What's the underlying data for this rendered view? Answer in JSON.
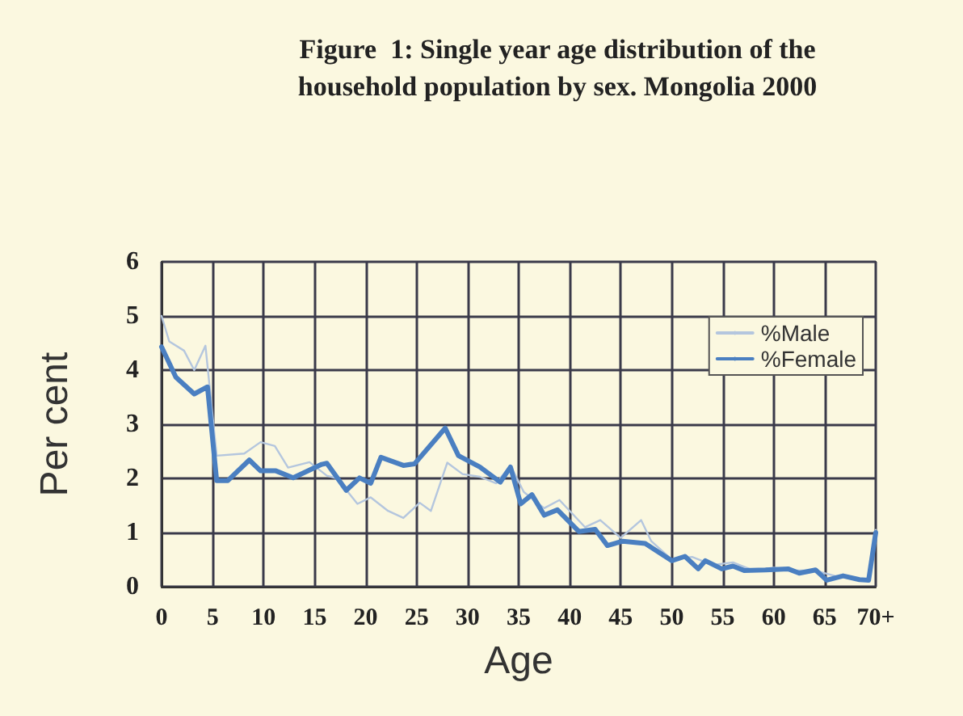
{
  "chart_data": {
    "type": "line",
    "title": "Figure  1: Single year age distribution of the\nhousehold population by sex. Mongolia 2000",
    "xlabel": "Age",
    "ylabel": "Per cent",
    "xlim": [
      0,
      70
    ],
    "xticks": [
      0,
      5,
      10,
      15,
      20,
      25,
      30,
      35,
      40,
      45,
      50,
      55,
      60,
      65,
      {
        "value": 70,
        "label": "70+"
      }
    ],
    "ylim": [
      0,
      6
    ],
    "yticks": [
      0,
      1,
      2,
      3,
      4,
      5,
      6
    ],
    "grid": true,
    "legend": "right",
    "marker": "none",
    "line_style": "solid",
    "series": [
      {
        "name": "%Male",
        "color": "#b4c6de",
        "x": [
          0,
          0.75,
          2.2,
          3.2,
          4.3,
          5.4,
          8.1,
          9.7,
          11.1,
          12.4,
          14.5,
          16.2,
          17.2,
          19.2,
          20.5,
          22.2,
          23.7,
          25.3,
          26.4,
          28,
          29.5,
          31.2,
          32.8,
          34.2,
          35.5,
          37.5,
          39,
          41.5,
          43,
          45,
          47,
          48,
          50,
          52,
          54,
          56,
          58,
          60,
          62,
          64,
          66,
          68,
          69.3,
          70
        ],
        "values": [
          5.0,
          4.53,
          4.36,
          4.0,
          4.45,
          2.42,
          2.46,
          2.67,
          2.6,
          2.2,
          2.3,
          2.05,
          2.0,
          1.53,
          1.65,
          1.4,
          1.27,
          1.55,
          1.4,
          2.29,
          2.08,
          2.03,
          1.91,
          2.24,
          1.75,
          1.45,
          1.6,
          1.1,
          1.23,
          0.9,
          1.23,
          0.84,
          0.5,
          0.55,
          0.4,
          0.45,
          0.3,
          0.35,
          0.3,
          0.3,
          0.2,
          0.15,
          0.12,
          1.05
        ]
      },
      {
        "name": "%Female",
        "color": "#4a7fc1",
        "x": [
          0,
          1.4,
          3.2,
          4.5,
          5.4,
          6.5,
          8.6,
          9.7,
          11.2,
          12.9,
          15.7,
          16.2,
          18.1,
          19.4,
          20.5,
          21.5,
          23.7,
          24.8,
          27.8,
          29.1,
          31.2,
          33.2,
          34.2,
          35.2,
          36.3,
          37.5,
          38.8,
          40.9,
          42.5,
          43.7,
          45.2,
          47.4,
          50,
          51.3,
          52.6,
          53.3,
          54.9,
          56,
          57.1,
          59.2,
          61.4,
          62.5,
          64.1,
          65.2,
          66.8,
          68.4,
          69.3,
          70
        ],
        "values": [
          4.43,
          3.87,
          3.56,
          3.69,
          1.96,
          1.96,
          2.34,
          2.14,
          2.14,
          2.01,
          2.26,
          2.28,
          1.78,
          2.01,
          1.91,
          2.39,
          2.24,
          2.27,
          2.93,
          2.42,
          2.21,
          1.93,
          2.21,
          1.53,
          1.7,
          1.32,
          1.42,
          1.02,
          1.06,
          0.76,
          0.84,
          0.8,
          0.48,
          0.56,
          0.33,
          0.48,
          0.33,
          0.38,
          0.3,
          0.31,
          0.33,
          0.25,
          0.31,
          0.12,
          0.2,
          0.13,
          0.12,
          1.0
        ]
      }
    ]
  }
}
